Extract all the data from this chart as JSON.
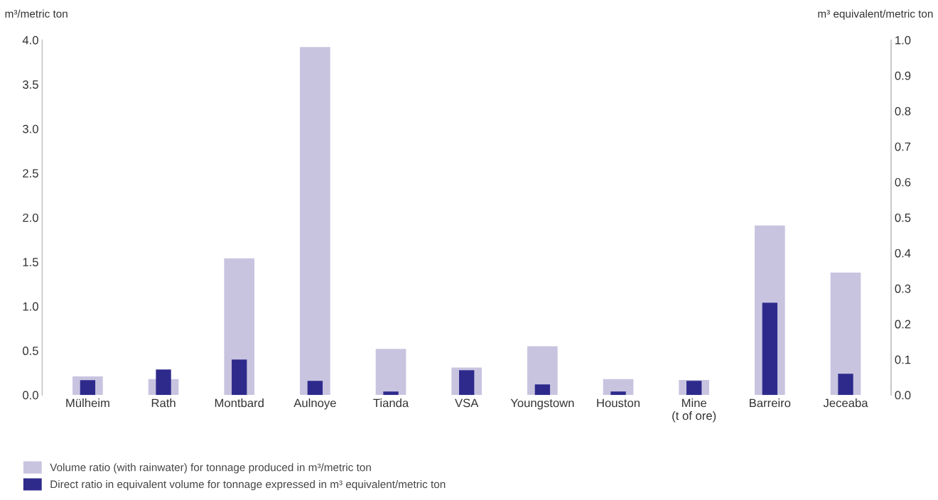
{
  "chart_data": {
    "type": "bar",
    "ylabel": "m³/metric ton",
    "y2label": "m³ equivalent/metric ton",
    "categories": [
      "Mülheim",
      "Rath",
      "Montbard",
      "Aulnoye",
      "Tianda",
      "VSA",
      "Youngstown",
      "Houston",
      "Mine\n(t of ore)",
      "Barreiro",
      "Jeceaba"
    ],
    "series": [
      {
        "name": "Volume ratio (with rainwater) for tonnage produced in m³/metric ton",
        "color": "#c8c4e0",
        "values": [
          0.21,
          0.18,
          1.54,
          3.92,
          0.52,
          0.31,
          0.55,
          0.18,
          0.17,
          1.91,
          1.38
        ]
      },
      {
        "name": "Direct ratio in equivalent volume for tonnage expressed in m³ equivalent/metric ton",
        "color": "#2e2a8c",
        "axis": "y2",
        "values": [
          0.042,
          0.072,
          0.1,
          0.04,
          0.01,
          0.07,
          0.03,
          0.01,
          0.04,
          0.26,
          0.06
        ]
      }
    ],
    "ylim": [
      0,
      4
    ],
    "yticks": [
      {
        "value": 0,
        "label": "0.0"
      },
      0.5,
      {
        "value": 1,
        "label": "1.0"
      },
      1.5,
      {
        "value": 2,
        "label": "2.0"
      },
      2.5,
      {
        "value": 3,
        "label": "3.0"
      },
      3.5,
      {
        "value": 4,
        "label": "4.0"
      }
    ],
    "y2lim": [
      0,
      1
    ],
    "y2ticks": [
      {
        "value": 0,
        "label": "0.0"
      },
      0.1,
      0.2,
      0.3,
      0.4,
      0.5,
      0.6,
      0.7,
      0.8,
      0.9,
      {
        "value": 1,
        "label": "1.0"
      }
    ],
    "grid": false,
    "legend": "bottom left"
  }
}
